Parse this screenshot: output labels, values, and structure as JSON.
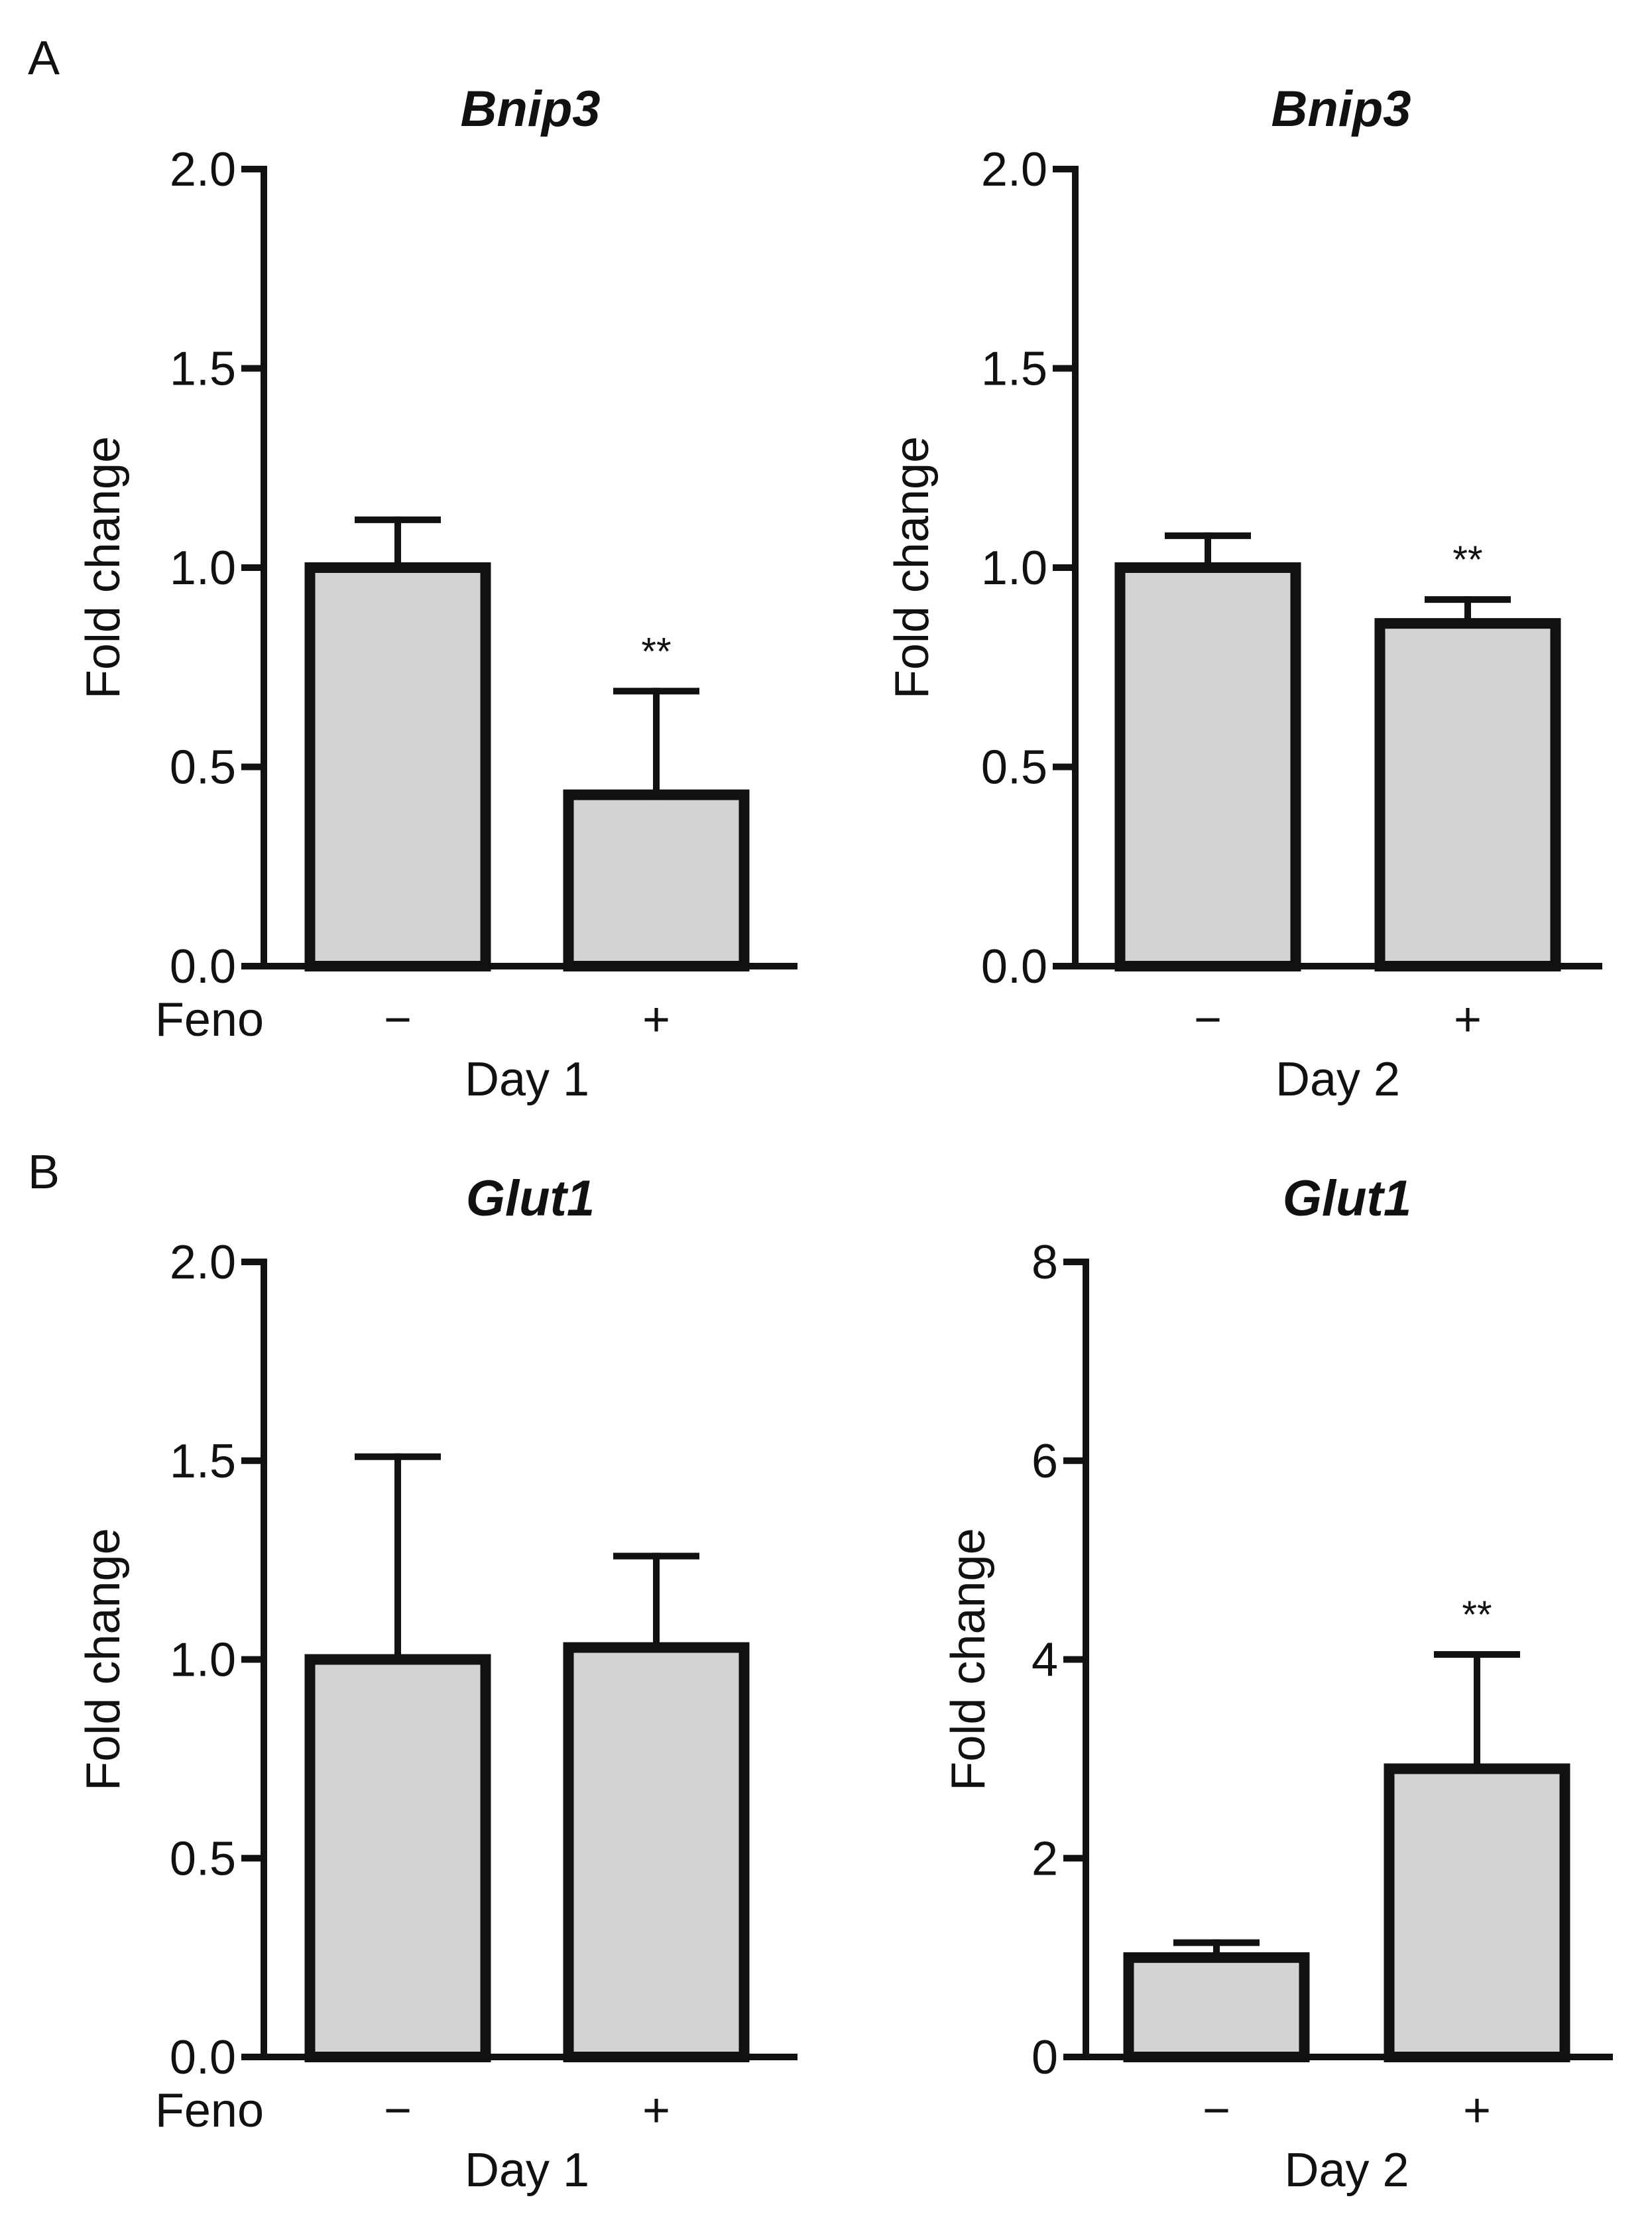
{
  "panels": [
    {
      "label": "A"
    },
    {
      "label": "B"
    }
  ],
  "chart_data": [
    {
      "type": "bar",
      "title": "Bnip3",
      "ylabel": "Fold change",
      "xlabel": "Day 1",
      "row_label": "Feno",
      "categories": [
        "−",
        "+"
      ],
      "values": [
        1.0,
        0.43
      ],
      "error_upper": [
        1.12,
        0.69
      ],
      "significance": [
        "",
        "**"
      ],
      "ylim": [
        0,
        2.0
      ],
      "yticks": [
        "0.0",
        "0.5",
        "1.0",
        "1.5",
        "2.0"
      ],
      "ytick_values": [
        0,
        0.5,
        1.0,
        1.5,
        2.0
      ]
    },
    {
      "type": "bar",
      "title": "Bnip3",
      "ylabel": "Fold change",
      "xlabel": "Day 2",
      "row_label": "",
      "categories": [
        "−",
        "+"
      ],
      "values": [
        1.0,
        0.86
      ],
      "error_upper": [
        1.08,
        0.92
      ],
      "significance": [
        "",
        "**"
      ],
      "ylim": [
        0,
        2.0
      ],
      "yticks": [
        "0.0",
        "0.5",
        "1.0",
        "1.5",
        "2.0"
      ],
      "ytick_values": [
        0,
        0.5,
        1.0,
        1.5,
        2.0
      ]
    },
    {
      "type": "bar",
      "title": "Glut1",
      "ylabel": "Fold change",
      "xlabel": "Day 1",
      "row_label": "Feno",
      "categories": [
        "−",
        "+"
      ],
      "values": [
        1.0,
        1.03
      ],
      "error_upper": [
        1.51,
        1.26
      ],
      "significance": [
        "",
        ""
      ],
      "ylim": [
        0,
        2.0
      ],
      "yticks": [
        "0.0",
        "0.5",
        "1.0",
        "1.5",
        "2.0"
      ],
      "ytick_values": [
        0,
        0.5,
        1.0,
        1.5,
        2.0
      ]
    },
    {
      "type": "bar",
      "title": "Glut1",
      "ylabel": "Fold change",
      "xlabel": "Day 2",
      "row_label": "",
      "categories": [
        "−",
        "+"
      ],
      "values": [
        1.0,
        2.9
      ],
      "error_upper": [
        1.15,
        4.05
      ],
      "significance": [
        "",
        "**"
      ],
      "ylim": [
        0,
        8
      ],
      "yticks": [
        "0",
        "2",
        "4",
        "6",
        "8"
      ],
      "ytick_values": [
        0,
        2,
        4,
        6,
        8
      ]
    }
  ]
}
